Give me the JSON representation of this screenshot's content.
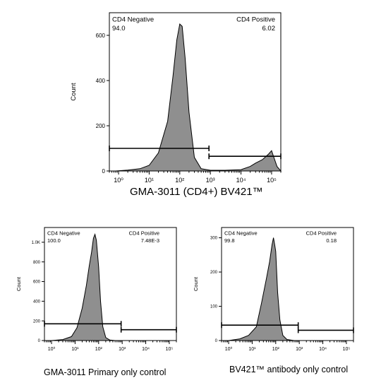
{
  "chart_data": [
    {
      "type": "area",
      "ylabel": "Count",
      "caption": "GMA-3011 (CD4+)  BV421™",
      "x_scale": "log",
      "xlim": [
        0.5,
        200000
      ],
      "ylim": [
        0,
        700
      ],
      "y_ticks": [
        "0",
        "200",
        "400",
        "600"
      ],
      "y_tick_values": [
        0,
        200,
        400,
        600
      ],
      "x_ticks": [
        "10⁰",
        "10¹",
        "10²",
        "10³",
        "10⁴",
        "10⁵"
      ],
      "gates": [
        {
          "name": "CD4 Negative",
          "value": "94.0",
          "x_range": [
            0.5,
            900
          ],
          "y": 100
        },
        {
          "name": "CD4 Positive",
          "value": "6.02",
          "x_range": [
            900,
            200000
          ],
          "y": 65
        }
      ],
      "x": [
        0.8,
        2,
        5,
        10,
        20,
        40,
        60,
        80,
        100,
        120,
        150,
        200,
        300,
        500,
        1000,
        3000,
        10000,
        20000,
        30000,
        50000,
        80000,
        100000,
        150000,
        200000
      ],
      "y": [
        0,
        4,
        10,
        25,
        80,
        220,
        420,
        580,
        650,
        640,
        500,
        260,
        60,
        10,
        3,
        3,
        6,
        20,
        35,
        50,
        75,
        90,
        20,
        0
      ]
    },
    {
      "type": "area",
      "ylabel": "Count",
      "caption": "GMA-3011  Primary only control",
      "x_scale": "log",
      "xlim": [
        0.5,
        200000
      ],
      "ylim": [
        0,
        1150
      ],
      "y_ticks": [
        "0",
        "200",
        "400",
        "600",
        "800",
        "1.0K"
      ],
      "y_tick_values": [
        0,
        200,
        400,
        600,
        800,
        1000
      ],
      "x_ticks": [
        "10⁰",
        "10¹",
        "10²",
        "10³",
        "10⁴",
        "10⁵"
      ],
      "gates": [
        {
          "name": "CD4 Negative",
          "value": "100.0",
          "x_range": [
            0.5,
            900
          ],
          "y": 170
        },
        {
          "name": "CD4 Positive",
          "value": "7.48E-3",
          "x_range": [
            900,
            200000
          ],
          "y": 110
        }
      ],
      "x": [
        1,
        3,
        7,
        12,
        20,
        30,
        40,
        50,
        60,
        70,
        80,
        100,
        120,
        150,
        200,
        300,
        500
      ],
      "y": [
        0,
        10,
        40,
        130,
        330,
        560,
        760,
        900,
        1040,
        1080,
        1020,
        750,
        400,
        140,
        30,
        5,
        0
      ]
    },
    {
      "type": "area",
      "ylabel": "Count",
      "caption": "BV421™ antibody only control",
      "x_scale": "log",
      "xlim": [
        0.5,
        200000
      ],
      "ylim": [
        0,
        330
      ],
      "y_ticks": [
        "0",
        "100",
        "200",
        "300"
      ],
      "y_tick_values": [
        0,
        100,
        200,
        300
      ],
      "x_ticks": [
        "10⁰",
        "10¹",
        "10²",
        "10³",
        "10⁴",
        "10⁵"
      ],
      "gates": [
        {
          "name": "CD4 Negative",
          "value": "99.8",
          "x_range": [
            0.5,
            900
          ],
          "y": 45
        },
        {
          "name": "CD4 Positive",
          "value": "0.18",
          "x_range": [
            900,
            200000
          ],
          "y": 30
        }
      ],
      "x": [
        1,
        3,
        7,
        15,
        25,
        40,
        55,
        70,
        80,
        90,
        100,
        120,
        150,
        200,
        300,
        600
      ],
      "y": [
        0,
        5,
        15,
        40,
        110,
        180,
        230,
        280,
        300,
        280,
        260,
        140,
        60,
        15,
        3,
        0
      ]
    }
  ]
}
